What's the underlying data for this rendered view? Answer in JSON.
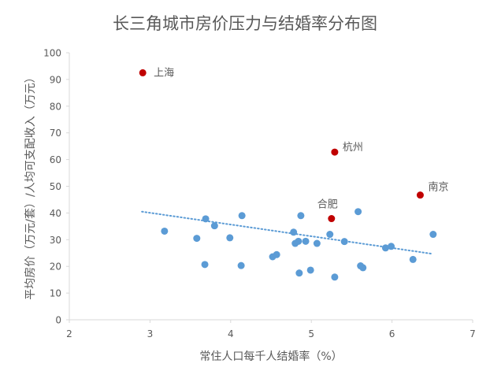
{
  "chart_data": {
    "type": "scatter",
    "title": "长三角城市房价压力与结婚率分布图",
    "xlabel": "常住人口每千人结婚率（%）",
    "ylabel": "平均房价（万元/套）/人均可支配收入（万元）",
    "xlim": [
      2,
      7
    ],
    "ylim": [
      0,
      100
    ],
    "xticks": [
      "2",
      "3",
      "4",
      "5",
      "6",
      "7"
    ],
    "yticks": [
      "0",
      "10",
      "20",
      "30",
      "40",
      "50",
      "60",
      "70",
      "80",
      "90",
      "100"
    ],
    "grid": false,
    "legend": "none",
    "colors": {
      "points": "#5B9BD5",
      "highlight": "#C00000",
      "trend": "#5B9BD5",
      "axis": "#D9D9D9",
      "text": "#595959"
    },
    "highlighted_points": [
      {
        "label": "上海",
        "x": 2.91,
        "y": 92.5
      },
      {
        "label": "杭州",
        "x": 5.29,
        "y": 62.8
      },
      {
        "label": "南京",
        "x": 6.35,
        "y": 46.7
      },
      {
        "label": "合肥",
        "x": 5.25,
        "y": 37.9
      }
    ],
    "points": [
      {
        "x": 3.18,
        "y": 33.2
      },
      {
        "x": 3.58,
        "y": 30.5
      },
      {
        "x": 3.68,
        "y": 20.7
      },
      {
        "x": 3.69,
        "y": 37.8
      },
      {
        "x": 3.8,
        "y": 35.2
      },
      {
        "x": 3.99,
        "y": 30.7
      },
      {
        "x": 4.13,
        "y": 20.3
      },
      {
        "x": 4.14,
        "y": 39.0
      },
      {
        "x": 4.52,
        "y": 23.6
      },
      {
        "x": 4.57,
        "y": 24.4
      },
      {
        "x": 4.78,
        "y": 32.8
      },
      {
        "x": 4.8,
        "y": 28.6
      },
      {
        "x": 4.84,
        "y": 29.4
      },
      {
        "x": 4.85,
        "y": 17.5
      },
      {
        "x": 4.87,
        "y": 39.0
      },
      {
        "x": 4.93,
        "y": 29.4
      },
      {
        "x": 4.99,
        "y": 18.6
      },
      {
        "x": 5.07,
        "y": 28.6
      },
      {
        "x": 5.23,
        "y": 32.0
      },
      {
        "x": 5.29,
        "y": 16.0
      },
      {
        "x": 5.41,
        "y": 29.3
      },
      {
        "x": 5.58,
        "y": 40.5
      },
      {
        "x": 5.61,
        "y": 20.2
      },
      {
        "x": 5.64,
        "y": 19.5
      },
      {
        "x": 5.92,
        "y": 26.9
      },
      {
        "x": 5.99,
        "y": 27.5
      },
      {
        "x": 6.26,
        "y": 22.6
      },
      {
        "x": 6.51,
        "y": 32.0
      }
    ],
    "trendline": {
      "x": [
        2.9,
        6.5
      ],
      "y": [
        40.5,
        24.7
      ]
    }
  }
}
